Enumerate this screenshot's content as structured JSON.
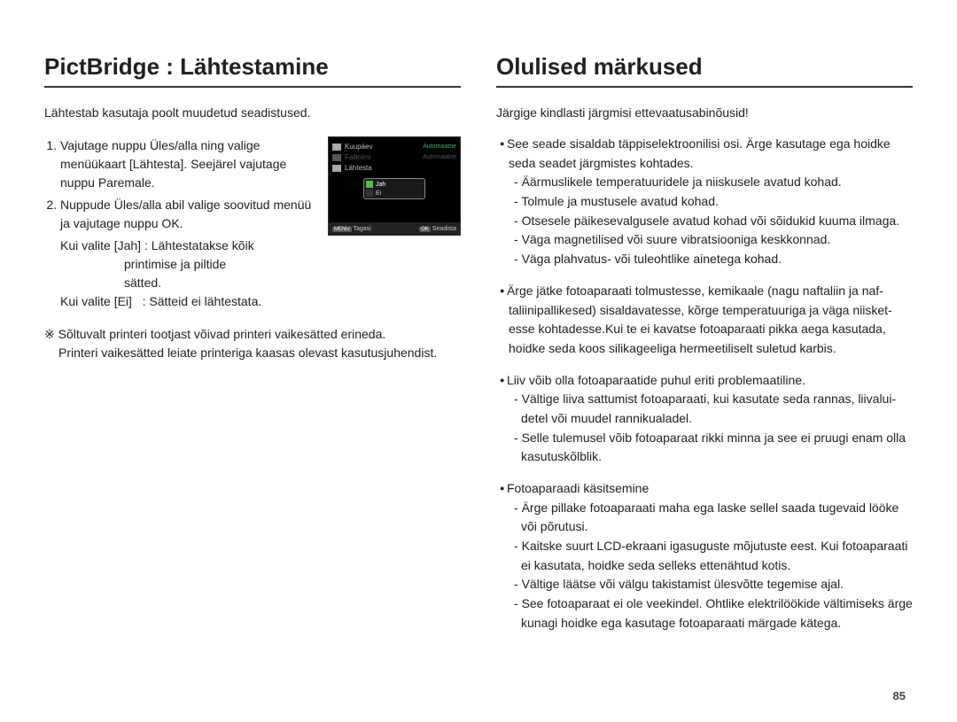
{
  "page_number": "85",
  "colors": {
    "text": "#202020",
    "heading_border": "#333333",
    "background": "#ffffff",
    "lcd_bg": "#000000",
    "lcd_text": "#bbbbbb",
    "lcd_dim": "#555555",
    "lcd_accent": "#55bb55",
    "lcd_footer_bg": "#222222"
  },
  "left": {
    "title": "PictBridge : Lähtestamine",
    "intro": "Lähtestab kasutaja poolt muudetud seadistused.",
    "steps": [
      "Vajutage nuppu Üles/alla ning valige menüükaart [Lähtesta]. Seejärel vajutage nuppu Paremale.",
      "Nuppude Üles/alla abil valige soovitud menüü ja vajutage nuppu OK."
    ],
    "choice_yes_k": "Kui valite [Jah]",
    "choice_yes_v1": ": Lähtestatakse kõik",
    "choice_yes_v2": "printimise ja piltide",
    "choice_yes_v3": "sätted.",
    "choice_no_k": "Kui valite [Ei]",
    "choice_no_v": ": Sätteid ei lähtestata.",
    "note_sym": "※",
    "note1": "Sõltuvalt printeri tootjast võivad printeri vaikesätted erineda.",
    "note2": "Printeri vaikesätted leiate printeriga kaasas olevast kasutusjuhendist.",
    "lcd": {
      "rows": [
        {
          "label": "Kuupäev",
          "right": "Automaatne",
          "dim": false
        },
        {
          "label": "Failinimi",
          "right": "Automaatne",
          "dim": true
        },
        {
          "label": "Lähtesta",
          "right": "",
          "dim": false
        }
      ],
      "popup_yes": "Jah",
      "popup_no": "Ei",
      "footer_left_btn": "MENU",
      "footer_left": "Tagasi",
      "footer_right_btn": "OK",
      "footer_right": "Seadista"
    }
  },
  "right": {
    "title": "Olulised märkused",
    "intro": "Järgige kindlasti järgmisi ettevaatusabinõusid!",
    "sections": [
      {
        "lead": "See seade sisaldab täppiselektroonilisi osi. Ärge kasutage ega hoidke seda seadet järgmistes kohtades.",
        "items": [
          "Äärmuslikele temperatuuridele ja niiskusele avatud kohad.",
          "Tolmule ja mustusele avatud kohad.",
          "Otsesele päikesevalgusele avatud kohad või sõidukid kuuma ilmaga.",
          "Väga magnetilised või suure vibratsiooniga keskkonnad.",
          "Väga plahvatus- või tuleohtlike ainetega kohad."
        ]
      },
      {
        "lead": "Ärge jätke fotoaparaati tolmustesse, kemikaale (nagu naftaliin ja naf-taliinipallikesed) sisaldavatesse, kõrge temperatuuriga ja väga niisket-esse kohtadesse.Kui te ei kavatse fotoaparaati pikka aega kasutada, hoidke seda koos silikageeliga hermeetiliselt suletud karbis.",
        "items": []
      },
      {
        "lead": "Liiv võib olla fotoaparaatide puhul eriti problemaatiline.",
        "items": [
          "Vältige liiva sattumist fotoaparaati, kui kasutate seda rannas, liivalui-detel või muudel rannikualadel.",
          "Selle tulemusel võib fotoaparaat rikki minna ja see ei pruugi enam olla kasutuskõlblik."
        ]
      },
      {
        "lead": "Fotoaparaadi käsitsemine",
        "items": [
          "Ärge pillake fotoaparaati maha ega laske sellel saada tugevaid lööke või põrutusi.",
          "Kaitske suurt LCD-ekraani igasuguste mõjutuste eest. Kui fotoaparaati ei kasutata, hoidke seda selleks ettenähtud kotis.",
          "Vältige läätse või välgu takistamist ülesvõtte tegemise ajal.",
          "See fotoaparaat ei ole veekindel. Ohtlike elektrilöökide vältimiseks ärge kunagi hoidke ega kasutage fotoaparaati märgade kätega."
        ]
      }
    ]
  }
}
